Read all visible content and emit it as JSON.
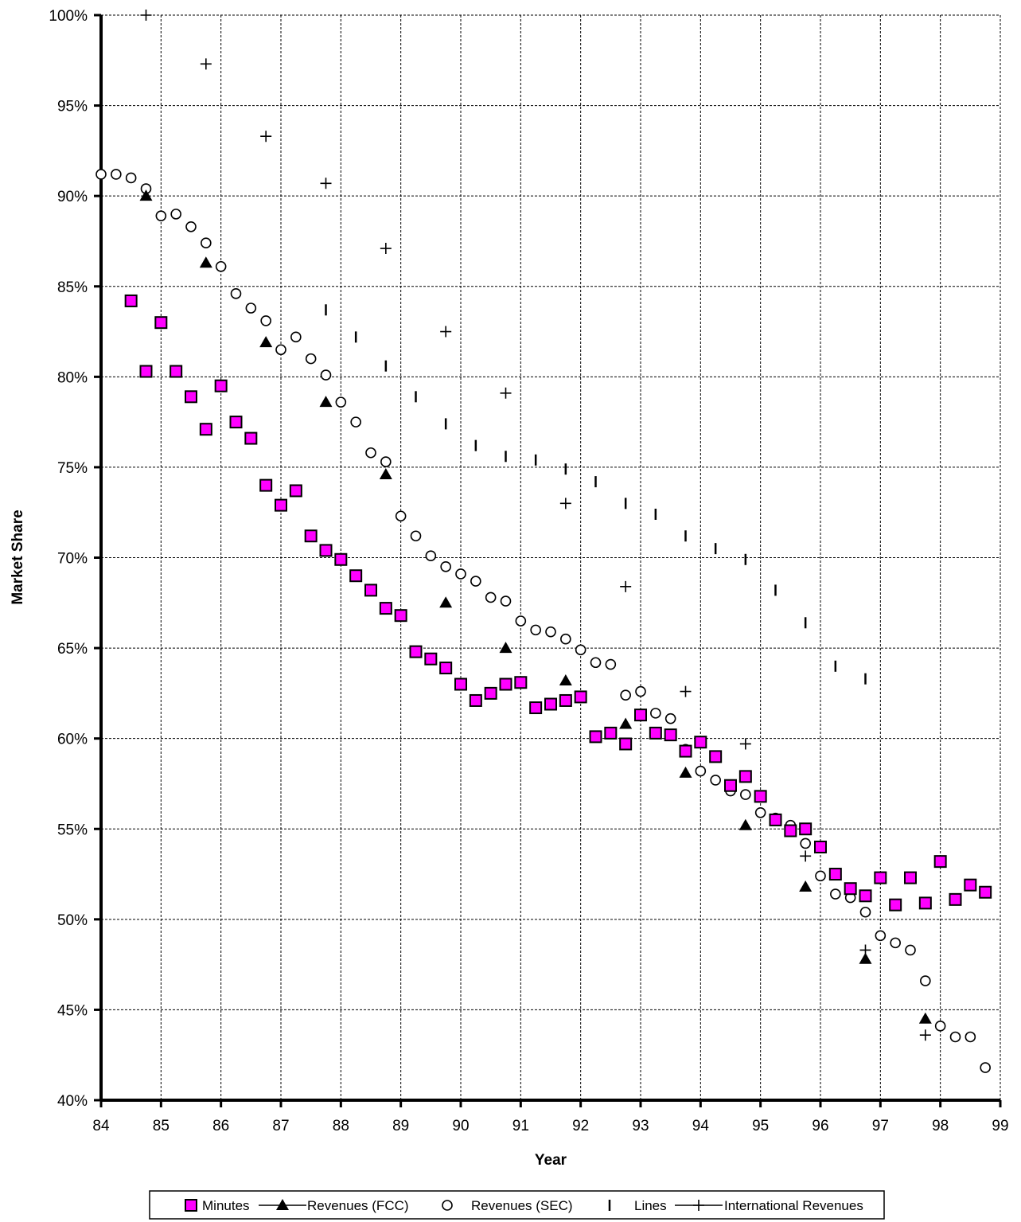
{
  "chart_data": {
    "type": "scatter",
    "xlabel": "Year",
    "ylabel": "Market Share",
    "xlim": [
      84,
      99
    ],
    "ylim": [
      40,
      100
    ],
    "x_ticks": [
      "84",
      "85",
      "86",
      "87",
      "88",
      "89",
      "90",
      "91",
      "92",
      "93",
      "94",
      "95",
      "96",
      "97",
      "98",
      "99"
    ],
    "y_ticks": [
      "40%",
      "45%",
      "50%",
      "55%",
      "60%",
      "65%",
      "70%",
      "75%",
      "80%",
      "85%",
      "90%",
      "95%",
      "100%"
    ],
    "grid": true,
    "legend_position": "bottom",
    "series": [
      {
        "name": "Minutes",
        "marker": "square",
        "color": "#ff00ff",
        "points": [
          [
            84.5,
            84.2
          ],
          [
            84.75,
            80.3
          ],
          [
            85.0,
            83.0
          ],
          [
            85.25,
            80.3
          ],
          [
            85.5,
            78.9
          ],
          [
            85.75,
            77.1
          ],
          [
            86.0,
            79.5
          ],
          [
            86.25,
            77.5
          ],
          [
            86.5,
            76.6
          ],
          [
            86.75,
            74.0
          ],
          [
            87.0,
            72.9
          ],
          [
            87.25,
            73.7
          ],
          [
            87.5,
            71.2
          ],
          [
            87.75,
            70.4
          ],
          [
            88.0,
            69.9
          ],
          [
            88.25,
            69.0
          ],
          [
            88.5,
            68.2
          ],
          [
            88.75,
            67.2
          ],
          [
            89.0,
            66.8
          ],
          [
            89.25,
            64.8
          ],
          [
            89.5,
            64.4
          ],
          [
            89.75,
            63.9
          ],
          [
            90.0,
            63.0
          ],
          [
            90.25,
            62.1
          ],
          [
            90.5,
            62.5
          ],
          [
            90.75,
            63.0
          ],
          [
            91.0,
            63.1
          ],
          [
            91.25,
            61.7
          ],
          [
            91.5,
            61.9
          ],
          [
            91.75,
            62.1
          ],
          [
            92.0,
            62.3
          ],
          [
            92.25,
            60.1
          ],
          [
            92.5,
            60.3
          ],
          [
            92.75,
            59.7
          ],
          [
            93.0,
            61.3
          ],
          [
            93.25,
            60.3
          ],
          [
            93.5,
            60.2
          ],
          [
            93.75,
            59.3
          ],
          [
            94.0,
            59.8
          ],
          [
            94.25,
            59.0
          ],
          [
            94.5,
            57.4
          ],
          [
            94.75,
            57.9
          ],
          [
            95.0,
            56.8
          ],
          [
            95.25,
            55.5
          ],
          [
            95.5,
            54.9
          ],
          [
            95.75,
            55.0
          ],
          [
            96.0,
            54.0
          ],
          [
            96.25,
            52.5
          ],
          [
            96.5,
            51.7
          ],
          [
            96.75,
            51.3
          ],
          [
            97.0,
            52.3
          ],
          [
            97.25,
            50.8
          ],
          [
            97.5,
            52.3
          ],
          [
            97.75,
            50.9
          ],
          [
            98.0,
            53.2
          ],
          [
            98.25,
            51.1
          ],
          [
            98.5,
            51.9
          ],
          [
            98.75,
            51.5
          ]
        ]
      },
      {
        "name": "Revenues (FCC)",
        "marker": "triangle",
        "color": "#000000",
        "points": [
          [
            84.75,
            90.0
          ],
          [
            85.75,
            86.3
          ],
          [
            86.75,
            81.9
          ],
          [
            87.75,
            78.6
          ],
          [
            88.75,
            74.6
          ],
          [
            89.75,
            67.5
          ],
          [
            90.75,
            65.0
          ],
          [
            91.75,
            63.2
          ],
          [
            92.75,
            60.8
          ],
          [
            93.75,
            58.1
          ],
          [
            94.75,
            55.2
          ],
          [
            95.75,
            51.8
          ],
          [
            96.75,
            47.8
          ],
          [
            97.75,
            44.5
          ]
        ]
      },
      {
        "name": "Revenues (SEC)",
        "marker": "circle",
        "color": "#000000",
        "points": [
          [
            84.0,
            91.2
          ],
          [
            84.25,
            91.2
          ],
          [
            84.5,
            91.0
          ],
          [
            84.75,
            90.4
          ],
          [
            85.0,
            88.9
          ],
          [
            85.25,
            89.0
          ],
          [
            85.5,
            88.3
          ],
          [
            85.75,
            87.4
          ],
          [
            86.0,
            86.1
          ],
          [
            86.25,
            84.6
          ],
          [
            86.5,
            83.8
          ],
          [
            86.75,
            83.1
          ],
          [
            87.0,
            81.5
          ],
          [
            87.25,
            82.2
          ],
          [
            87.5,
            81.0
          ],
          [
            87.75,
            80.1
          ],
          [
            88.0,
            78.6
          ],
          [
            88.25,
            77.5
          ],
          [
            88.5,
            75.8
          ],
          [
            88.75,
            75.3
          ],
          [
            89.0,
            72.3
          ],
          [
            89.25,
            71.2
          ],
          [
            89.5,
            70.1
          ],
          [
            89.75,
            69.5
          ],
          [
            90.0,
            69.1
          ],
          [
            90.25,
            68.7
          ],
          [
            90.5,
            67.8
          ],
          [
            90.75,
            67.6
          ],
          [
            91.0,
            66.5
          ],
          [
            91.25,
            66.0
          ],
          [
            91.5,
            65.9
          ],
          [
            91.75,
            65.5
          ],
          [
            92.0,
            64.9
          ],
          [
            92.25,
            64.2
          ],
          [
            92.5,
            64.1
          ],
          [
            92.75,
            62.4
          ],
          [
            93.0,
            62.6
          ],
          [
            93.25,
            61.4
          ],
          [
            93.5,
            61.1
          ],
          [
            93.75,
            59.4
          ],
          [
            94.0,
            58.2
          ],
          [
            94.25,
            57.7
          ],
          [
            94.5,
            57.1
          ],
          [
            94.75,
            56.9
          ],
          [
            95.0,
            55.9
          ],
          [
            95.25,
            55.6
          ],
          [
            95.5,
            55.2
          ],
          [
            95.75,
            54.2
          ],
          [
            96.0,
            52.4
          ],
          [
            96.25,
            51.4
          ],
          [
            96.5,
            51.2
          ],
          [
            96.75,
            50.4
          ],
          [
            97.0,
            49.1
          ],
          [
            97.25,
            48.7
          ],
          [
            97.5,
            48.3
          ],
          [
            97.75,
            46.6
          ],
          [
            98.0,
            44.1
          ],
          [
            98.25,
            43.5
          ],
          [
            98.5,
            43.5
          ],
          [
            98.75,
            41.8
          ]
        ]
      },
      {
        "name": "Lines",
        "marker": "dash",
        "color": "#000000",
        "points": [
          [
            87.75,
            83.7
          ],
          [
            88.25,
            82.2
          ],
          [
            88.75,
            80.6
          ],
          [
            89.25,
            78.9
          ],
          [
            89.75,
            77.4
          ],
          [
            90.25,
            76.2
          ],
          [
            90.75,
            75.6
          ],
          [
            91.25,
            75.4
          ],
          [
            91.75,
            74.9
          ],
          [
            92.25,
            74.2
          ],
          [
            92.75,
            73.0
          ],
          [
            93.25,
            72.4
          ],
          [
            93.75,
            71.2
          ],
          [
            94.25,
            70.5
          ],
          [
            94.75,
            69.9
          ],
          [
            95.25,
            68.2
          ],
          [
            95.75,
            66.4
          ],
          [
            96.25,
            64.0
          ],
          [
            96.75,
            63.3
          ]
        ]
      },
      {
        "name": "International Revenues",
        "marker": "plus",
        "color": "#000000",
        "points": [
          [
            84.75,
            100.0
          ],
          [
            85.75,
            97.3
          ],
          [
            86.75,
            93.3
          ],
          [
            87.75,
            90.7
          ],
          [
            88.75,
            87.1
          ],
          [
            89.75,
            82.5
          ],
          [
            90.75,
            79.1
          ],
          [
            91.75,
            73.0
          ],
          [
            92.75,
            68.4
          ],
          [
            93.75,
            62.6
          ],
          [
            94.75,
            59.7
          ],
          [
            95.75,
            53.5
          ],
          [
            96.75,
            48.3
          ],
          [
            97.75,
            43.6
          ]
        ]
      }
    ]
  }
}
